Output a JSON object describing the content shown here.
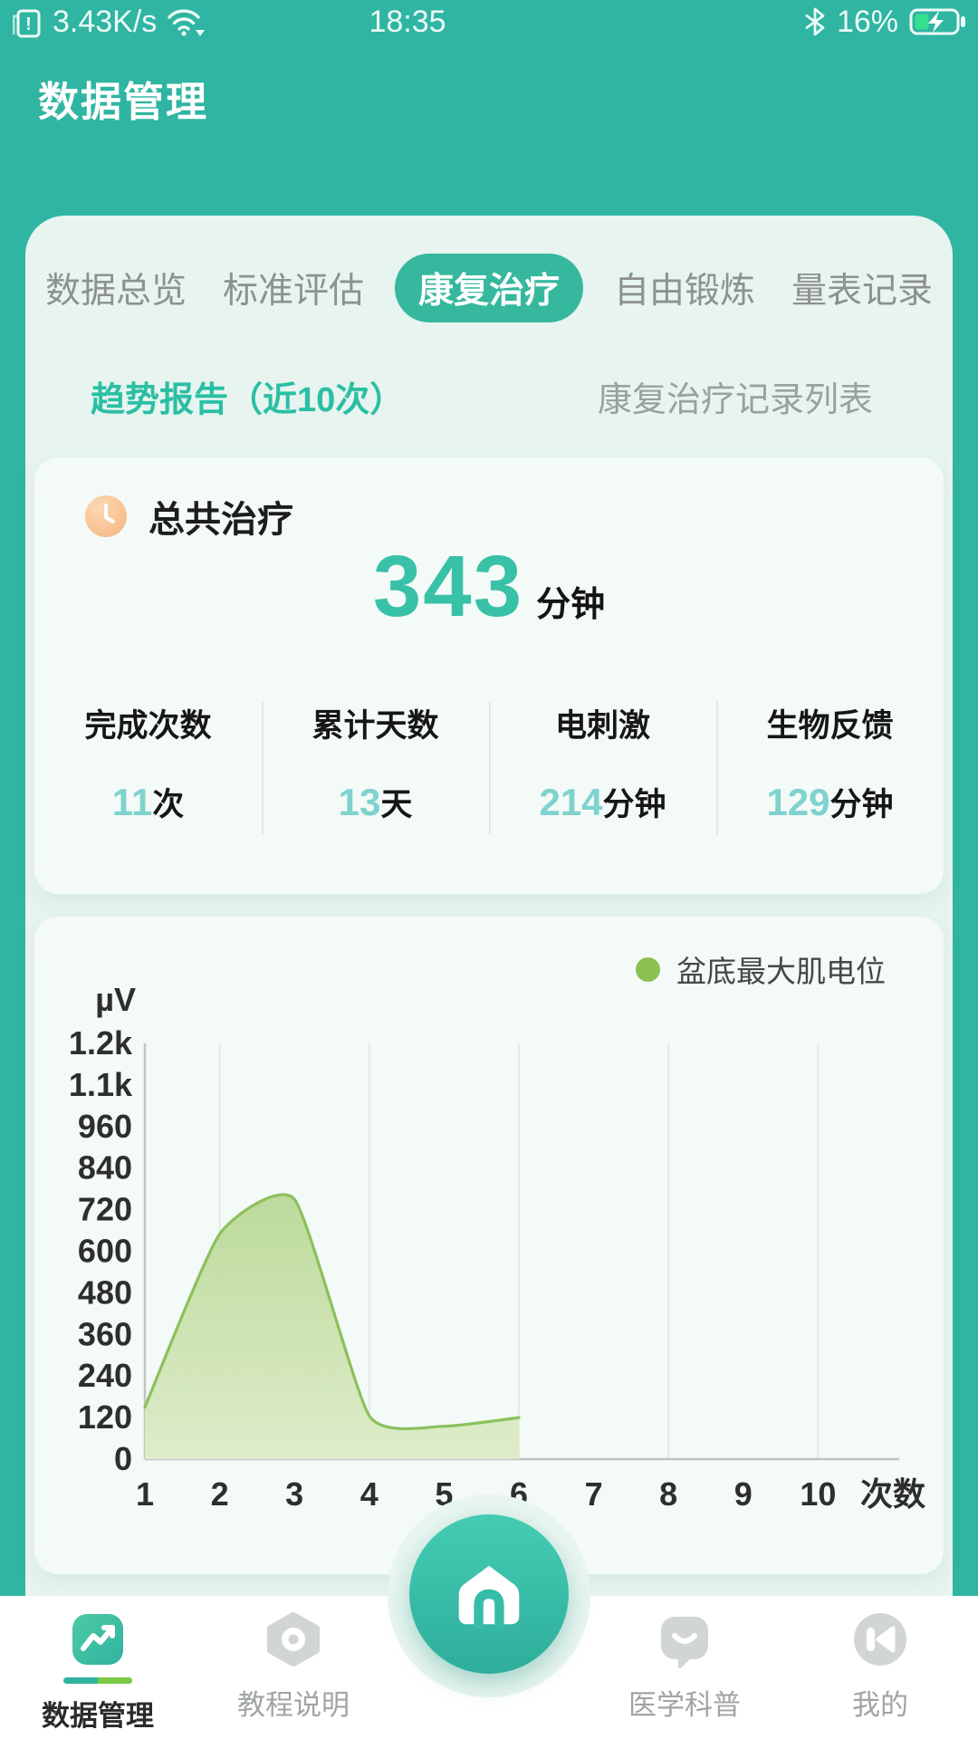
{
  "status_bar": {
    "net_speed": "3.43K/s",
    "time": "18:35",
    "battery_pct": "16%",
    "colors": {
      "battery_fill": "#35e08e"
    }
  },
  "header": {
    "title": "数据管理"
  },
  "tabs": [
    {
      "label": "数据总览",
      "active": false
    },
    {
      "label": "标准评估",
      "active": false
    },
    {
      "label": "康复治疗",
      "active": true
    },
    {
      "label": "自由锻炼",
      "active": false
    },
    {
      "label": "量表记录",
      "active": false
    }
  ],
  "subtabs": [
    {
      "label": "趋势报告（近10次）",
      "active": true
    },
    {
      "label": "康复治疗记录列表",
      "active": false
    }
  ],
  "summary_card": {
    "title": "总共治疗",
    "total_value": "343",
    "total_unit": "分钟",
    "stats": [
      {
        "label": "完成次数",
        "value": "11",
        "unit": "次"
      },
      {
        "label": "累计天数",
        "value": "13",
        "unit": "天"
      },
      {
        "label": "电刺激",
        "value": "214",
        "unit": "分钟"
      },
      {
        "label": "生物反馈",
        "value": "129",
        "unit": "分钟"
      }
    ]
  },
  "chart_data": {
    "type": "area",
    "title": "",
    "legend": "盆底最大肌电位",
    "series_color": "#8cc152",
    "line_color": "#8cc05c",
    "fill_top": "#b7d792",
    "fill_bottom": "#ddecc8",
    "y_unit": "µV",
    "xlabel": "次数",
    "x": [
      1,
      2,
      3,
      4,
      5,
      6
    ],
    "values": [
      150,
      650,
      750,
      125,
      95,
      120
    ],
    "x_ticks": [
      "1",
      "2",
      "3",
      "4",
      "5",
      "6",
      "7",
      "8",
      "9",
      "10"
    ],
    "y_ticks": [
      {
        "label": "1.2k",
        "value": 1200
      },
      {
        "label": "1.1k",
        "value": 1080
      },
      {
        "label": "960",
        "value": 960
      },
      {
        "label": "840",
        "value": 840
      },
      {
        "label": "720",
        "value": 720
      },
      {
        "label": "600",
        "value": 600
      },
      {
        "label": "480",
        "value": 480
      },
      {
        "label": "360",
        "value": 360
      },
      {
        "label": "240",
        "value": 240
      },
      {
        "label": "120",
        "value": 120
      },
      {
        "label": "0",
        "value": 0
      }
    ],
    "ylim": [
      0,
      1200
    ],
    "grid_x_at": [
      2,
      4,
      6,
      8,
      10
    ],
    "legend_position": "top-right"
  },
  "bottom_nav": {
    "items": [
      {
        "label": "数据管理",
        "icon": "chart-line-icon",
        "active": true,
        "home": false
      },
      {
        "label": "教程说明",
        "icon": "tutorial-icon",
        "active": false,
        "home": false
      },
      {
        "label": "",
        "icon": "home-icon",
        "active": false,
        "home": true
      },
      {
        "label": "医学科普",
        "icon": "medical-chat-icon",
        "active": false,
        "home": false
      },
      {
        "label": "我的",
        "icon": "profile-icon",
        "active": false,
        "home": false
      }
    ]
  }
}
